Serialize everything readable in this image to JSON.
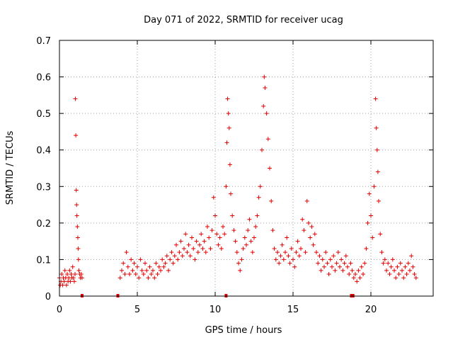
{
  "chart_data": {
    "type": "scatter",
    "title": "Day 071 of 2022, SRMTID for receiver ucag",
    "xlabel": "GPS time / hours",
    "ylabel": "SRMTID / TECUs",
    "xlim": [
      0,
      24
    ],
    "ylim": [
      0,
      0.7
    ],
    "xticks": [
      0,
      5,
      10,
      15,
      20
    ],
    "xtick_labels": [
      "0",
      "5",
      "10",
      "15",
      "20"
    ],
    "yticks": [
      0,
      0.1,
      0.2,
      0.3,
      0.4,
      0.5,
      0.6,
      0.7
    ],
    "ytick_labels": [
      "0",
      "0.1",
      "0.2",
      "0.3",
      "0.4",
      "0.5",
      "0.6",
      "0.7"
    ],
    "grid": true,
    "marker": "+",
    "color": "#e00000",
    "series": [
      {
        "name": "SRMTID",
        "points": [
          [
            0.0,
            0.05
          ],
          [
            0.05,
            0.03
          ],
          [
            0.1,
            0.04
          ],
          [
            0.15,
            0.06
          ],
          [
            0.2,
            0.03
          ],
          [
            0.25,
            0.05
          ],
          [
            0.3,
            0.04
          ],
          [
            0.35,
            0.07
          ],
          [
            0.4,
            0.05
          ],
          [
            0.45,
            0.03
          ],
          [
            0.5,
            0.06
          ],
          [
            0.55,
            0.04
          ],
          [
            0.6,
            0.05
          ],
          [
            0.65,
            0.07
          ],
          [
            0.7,
            0.04
          ],
          [
            0.75,
            0.06
          ],
          [
            0.8,
            0.05
          ],
          [
            0.85,
            0.08
          ],
          [
            0.9,
            0.05
          ],
          [
            0.95,
            0.04
          ],
          [
            1.0,
            0.06
          ],
          [
            1.02,
            0.54
          ],
          [
            1.05,
            0.44
          ],
          [
            1.08,
            0.29
          ],
          [
            1.1,
            0.25
          ],
          [
            1.12,
            0.22
          ],
          [
            1.15,
            0.19
          ],
          [
            1.18,
            0.16
          ],
          [
            1.2,
            0.13
          ],
          [
            1.22,
            0.1
          ],
          [
            1.25,
            0.07
          ],
          [
            1.3,
            0.06
          ],
          [
            1.35,
            0.05
          ],
          [
            1.4,
            0.06
          ],
          [
            1.45,
            0.05
          ],
          [
            3.9,
            0.05
          ],
          [
            4.0,
            0.07
          ],
          [
            4.1,
            0.09
          ],
          [
            4.2,
            0.06
          ],
          [
            4.3,
            0.12
          ],
          [
            4.4,
            0.08
          ],
          [
            4.5,
            0.06
          ],
          [
            4.6,
            0.1
          ],
          [
            4.7,
            0.07
          ],
          [
            4.8,
            0.09
          ],
          [
            4.9,
            0.06
          ],
          [
            5.0,
            0.08
          ],
          [
            5.1,
            0.05
          ],
          [
            5.2,
            0.1
          ],
          [
            5.3,
            0.07
          ],
          [
            5.4,
            0.06
          ],
          [
            5.5,
            0.09
          ],
          [
            5.6,
            0.07
          ],
          [
            5.7,
            0.05
          ],
          [
            5.8,
            0.08
          ],
          [
            5.9,
            0.06
          ],
          [
            6.0,
            0.07
          ],
          [
            6.1,
            0.05
          ],
          [
            6.2,
            0.09
          ],
          [
            6.3,
            0.06
          ],
          [
            6.4,
            0.08
          ],
          [
            6.5,
            0.07
          ],
          [
            6.6,
            0.1
          ],
          [
            6.7,
            0.08
          ],
          [
            6.8,
            0.09
          ],
          [
            6.9,
            0.11
          ],
          [
            7.0,
            0.07
          ],
          [
            7.1,
            0.1
          ],
          [
            7.2,
            0.12
          ],
          [
            7.3,
            0.09
          ],
          [
            7.4,
            0.11
          ],
          [
            7.5,
            0.14
          ],
          [
            7.6,
            0.1
          ],
          [
            7.7,
            0.12
          ],
          [
            7.8,
            0.15
          ],
          [
            7.9,
            0.11
          ],
          [
            8.0,
            0.13
          ],
          [
            8.1,
            0.17
          ],
          [
            8.2,
            0.12
          ],
          [
            8.3,
            0.14
          ],
          [
            8.4,
            0.11
          ],
          [
            8.5,
            0.16
          ],
          [
            8.6,
            0.13
          ],
          [
            8.7,
            0.1
          ],
          [
            8.8,
            0.15
          ],
          [
            8.9,
            0.12
          ],
          [
            9.0,
            0.14
          ],
          [
            9.1,
            0.17
          ],
          [
            9.2,
            0.13
          ],
          [
            9.3,
            0.15
          ],
          [
            9.4,
            0.12
          ],
          [
            9.5,
            0.19
          ],
          [
            9.6,
            0.16
          ],
          [
            9.7,
            0.13
          ],
          [
            9.8,
            0.18
          ],
          [
            9.9,
            0.27
          ],
          [
            10.0,
            0.22
          ],
          [
            10.1,
            0.17
          ],
          [
            10.2,
            0.14
          ],
          [
            10.3,
            0.16
          ],
          [
            10.4,
            0.13
          ],
          [
            10.5,
            0.19
          ],
          [
            10.6,
            0.17
          ],
          [
            10.7,
            0.3
          ],
          [
            10.75,
            0.42
          ],
          [
            10.8,
            0.54
          ],
          [
            10.85,
            0.5
          ],
          [
            10.9,
            0.46
          ],
          [
            10.95,
            0.36
          ],
          [
            11.0,
            0.28
          ],
          [
            11.1,
            0.22
          ],
          [
            11.2,
            0.18
          ],
          [
            11.3,
            0.15
          ],
          [
            11.4,
            0.12
          ],
          [
            11.5,
            0.09
          ],
          [
            11.6,
            0.07
          ],
          [
            11.7,
            0.1
          ],
          [
            11.8,
            0.13
          ],
          [
            11.9,
            0.16
          ],
          [
            12.0,
            0.14
          ],
          [
            12.1,
            0.18
          ],
          [
            12.2,
            0.21
          ],
          [
            12.3,
            0.15
          ],
          [
            12.4,
            0.12
          ],
          [
            12.5,
            0.16
          ],
          [
            12.6,
            0.19
          ],
          [
            12.7,
            0.22
          ],
          [
            12.8,
            0.27
          ],
          [
            12.9,
            0.3
          ],
          [
            13.0,
            0.4
          ],
          [
            13.1,
            0.52
          ],
          [
            13.15,
            0.6
          ],
          [
            13.2,
            0.57
          ],
          [
            13.3,
            0.5
          ],
          [
            13.4,
            0.43
          ],
          [
            13.5,
            0.35
          ],
          [
            13.6,
            0.26
          ],
          [
            13.7,
            0.18
          ],
          [
            13.8,
            0.13
          ],
          [
            13.9,
            0.1
          ],
          [
            14.0,
            0.12
          ],
          [
            14.1,
            0.09
          ],
          [
            14.2,
            0.11
          ],
          [
            14.3,
            0.14
          ],
          [
            14.4,
            0.1
          ],
          [
            14.5,
            0.12
          ],
          [
            14.6,
            0.16
          ],
          [
            14.7,
            0.11
          ],
          [
            14.8,
            0.09
          ],
          [
            14.9,
            0.13
          ],
          [
            15.0,
            0.1
          ],
          [
            15.1,
            0.08
          ],
          [
            15.2,
            0.12
          ],
          [
            15.3,
            0.15
          ],
          [
            15.4,
            0.11
          ],
          [
            15.5,
            0.13
          ],
          [
            15.6,
            0.21
          ],
          [
            15.7,
            0.18
          ],
          [
            15.8,
            0.12
          ],
          [
            15.9,
            0.26
          ],
          [
            16.0,
            0.2
          ],
          [
            16.1,
            0.16
          ],
          [
            16.2,
            0.19
          ],
          [
            16.3,
            0.14
          ],
          [
            16.4,
            0.17
          ],
          [
            16.5,
            0.12
          ],
          [
            16.6,
            0.09
          ],
          [
            16.7,
            0.11
          ],
          [
            16.8,
            0.07
          ],
          [
            16.9,
            0.1
          ],
          [
            17.0,
            0.08
          ],
          [
            17.1,
            0.12
          ],
          [
            17.2,
            0.09
          ],
          [
            17.3,
            0.06
          ],
          [
            17.4,
            0.1
          ],
          [
            17.5,
            0.08
          ],
          [
            17.6,
            0.11
          ],
          [
            17.7,
            0.07
          ],
          [
            17.8,
            0.09
          ],
          [
            17.9,
            0.12
          ],
          [
            18.0,
            0.08
          ],
          [
            18.1,
            0.1
          ],
          [
            18.2,
            0.07
          ],
          [
            18.3,
            0.09
          ],
          [
            18.4,
            0.11
          ],
          [
            18.5,
            0.08
          ],
          [
            18.6,
            0.06
          ],
          [
            18.7,
            0.09
          ],
          [
            18.8,
            0.07
          ],
          [
            18.9,
            0.05
          ],
          [
            19.0,
            0.06
          ],
          [
            19.1,
            0.04
          ],
          [
            19.2,
            0.07
          ],
          [
            19.3,
            0.05
          ],
          [
            19.4,
            0.08
          ],
          [
            19.5,
            0.06
          ],
          [
            19.6,
            0.09
          ],
          [
            19.7,
            0.13
          ],
          [
            19.8,
            0.2
          ],
          [
            19.9,
            0.28
          ],
          [
            20.0,
            0.22
          ],
          [
            20.1,
            0.16
          ],
          [
            20.2,
            0.3
          ],
          [
            20.3,
            0.54
          ],
          [
            20.35,
            0.46
          ],
          [
            20.4,
            0.4
          ],
          [
            20.45,
            0.34
          ],
          [
            20.5,
            0.26
          ],
          [
            20.6,
            0.17
          ],
          [
            20.7,
            0.12
          ],
          [
            20.8,
            0.09
          ],
          [
            20.9,
            0.1
          ],
          [
            21.0,
            0.07
          ],
          [
            21.1,
            0.09
          ],
          [
            21.2,
            0.06
          ],
          [
            21.3,
            0.08
          ],
          [
            21.4,
            0.1
          ],
          [
            21.5,
            0.07
          ],
          [
            21.6,
            0.05
          ],
          [
            21.7,
            0.08
          ],
          [
            21.8,
            0.06
          ],
          [
            21.9,
            0.09
          ],
          [
            22.0,
            0.07
          ],
          [
            22.1,
            0.05
          ],
          [
            22.2,
            0.08
          ],
          [
            22.3,
            0.06
          ],
          [
            22.4,
            0.09
          ],
          [
            22.5,
            0.07
          ],
          [
            22.6,
            0.11
          ],
          [
            22.7,
            0.08
          ],
          [
            22.8,
            0.06
          ],
          [
            22.9,
            0.05
          ]
        ]
      }
    ],
    "gap_markers_x": [
      1.45,
      3.75,
      10.7,
      18.75,
      18.85
    ]
  }
}
